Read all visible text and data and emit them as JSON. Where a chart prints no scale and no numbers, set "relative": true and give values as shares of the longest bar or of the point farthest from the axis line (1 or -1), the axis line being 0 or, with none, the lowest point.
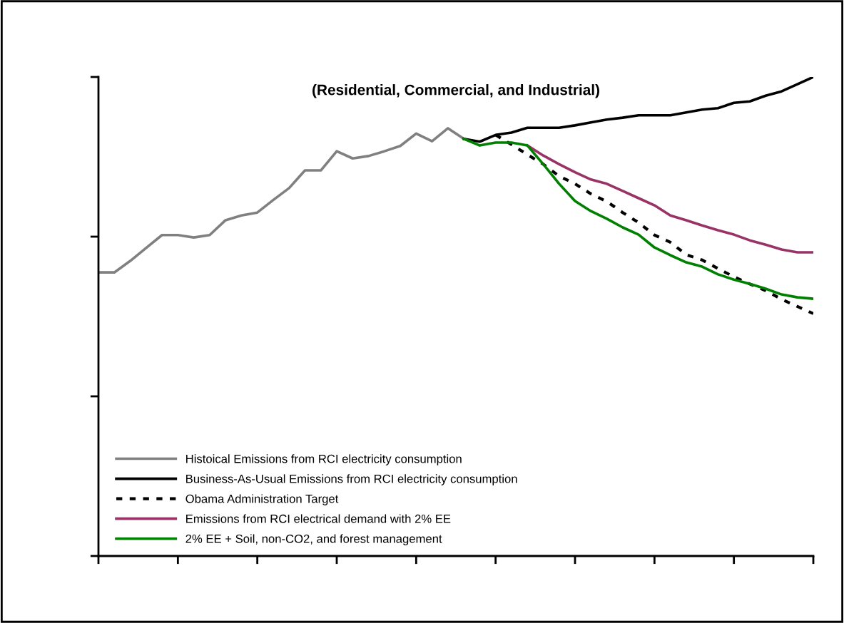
{
  "chart_data": {
    "type": "line",
    "relative": true,
    "title": "(Residential, Commercial, and Industrial)",
    "categories": [
      null,
      null,
      null,
      null,
      null,
      null,
      null,
      null,
      null,
      null,
      null,
      null,
      null,
      null,
      null,
      null,
      null,
      null,
      null,
      null,
      null,
      null,
      null,
      null,
      null,
      null,
      null,
      null,
      null,
      null,
      null,
      null,
      null,
      null,
      null,
      null,
      null,
      null,
      null,
      null,
      null,
      null,
      null,
      null,
      null,
      null
    ],
    "legend": "bottom left",
    "grid": false,
    "marker": "none",
    "series": [
      {
        "name": "Histoical Emissions from RCI electricity consumption",
        "color": "#808080",
        "line_style": "solid",
        "values": [
          0.592,
          0.592,
          0.616,
          0.643,
          0.67,
          0.67,
          0.665,
          0.67,
          0.701,
          0.711,
          0.717,
          0.743,
          0.768,
          0.805,
          0.805,
          0.845,
          0.83,
          0.835,
          0.845,
          0.856,
          0.882,
          0.866,
          0.893,
          0.871,
          null,
          null,
          null,
          null,
          null,
          null,
          null,
          null,
          null,
          null,
          null,
          null,
          null,
          null,
          null,
          null,
          null,
          null,
          null,
          null,
          null,
          null
        ]
      },
      {
        "name": "Business-As-Usual Emissions from RCI electricity consumption",
        "color": "#000000",
        "line_style": "solid",
        "values": [
          null,
          null,
          null,
          null,
          null,
          null,
          null,
          null,
          null,
          null,
          null,
          null,
          null,
          null,
          null,
          null,
          null,
          null,
          null,
          null,
          null,
          null,
          null,
          0.871,
          0.865,
          0.879,
          0.884,
          0.894,
          0.894,
          0.894,
          0.899,
          0.905,
          0.911,
          0.915,
          0.92,
          0.92,
          0.92,
          0.926,
          0.932,
          0.935,
          0.946,
          0.949,
          0.961,
          0.97,
          0.985,
          1.0
        ]
      },
      {
        "name": "Obama Administration Target",
        "color": "#000000",
        "line_style": "dashed",
        "values": [
          null,
          null,
          null,
          null,
          null,
          null,
          null,
          null,
          null,
          null,
          null,
          null,
          null,
          null,
          null,
          null,
          null,
          null,
          null,
          null,
          null,
          null,
          null,
          null,
          null,
          0.879,
          0.859,
          0.838,
          0.818,
          0.793,
          0.777,
          0.756,
          0.74,
          0.717,
          0.696,
          0.67,
          0.655,
          0.629,
          0.618,
          0.6,
          0.583,
          0.568,
          0.554,
          0.536,
          0.521,
          0.506
        ]
      },
      {
        "name": "Emissions from RCI electrical demand with 2% EE",
        "color": "#993366",
        "line_style": "solid",
        "values": [
          null,
          null,
          null,
          null,
          null,
          null,
          null,
          null,
          null,
          null,
          null,
          null,
          null,
          null,
          null,
          null,
          null,
          null,
          null,
          null,
          null,
          null,
          null,
          null,
          null,
          null,
          null,
          0.857,
          0.836,
          0.818,
          0.801,
          0.786,
          0.777,
          0.762,
          0.747,
          0.732,
          0.711,
          0.701,
          0.69,
          0.68,
          0.671,
          0.659,
          0.65,
          0.64,
          0.634,
          0.634
        ]
      },
      {
        "name": "2% EE + Soil, non-CO2, and forest management",
        "color": "#008000",
        "line_style": "solid",
        "values": [
          null,
          null,
          null,
          null,
          null,
          null,
          null,
          null,
          null,
          null,
          null,
          null,
          null,
          null,
          null,
          null,
          null,
          null,
          null,
          null,
          null,
          null,
          null,
          0.871,
          0.857,
          0.863,
          0.863,
          0.857,
          0.818,
          0.777,
          0.741,
          0.72,
          0.704,
          0.686,
          0.671,
          0.644,
          0.628,
          0.613,
          0.604,
          0.588,
          0.577,
          0.568,
          0.558,
          0.546,
          0.54,
          0.537
        ]
      }
    ]
  }
}
